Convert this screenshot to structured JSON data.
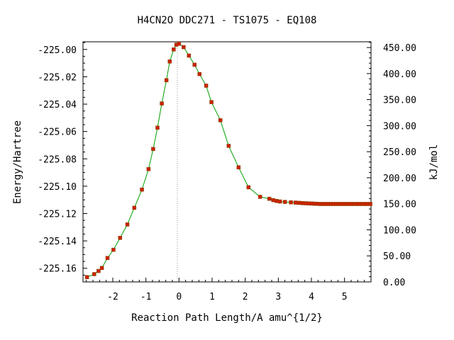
{
  "chart_data": {
    "type": "line",
    "title": "H4CN2O   DDC271 - TS1075 - EQ108",
    "xlabel": "Reaction Path Length/A amu^{1/2}",
    "ylabel": "Energy/Hartree",
    "y2label": "kJ/mol",
    "xlim": [
      -2.9,
      5.8
    ],
    "ylim": [
      -225.17,
      -224.9944
    ],
    "y2lim": [
      0,
      461
    ],
    "x_ticks": [
      -2,
      -1,
      0,
      1,
      2,
      3,
      4,
      5
    ],
    "x_tick_labels": [
      "-2",
      "-1",
      "0",
      "1",
      "2",
      "3",
      "4",
      "5"
    ],
    "y_ticks": [
      -225.0,
      -225.02,
      -225.04,
      -225.06,
      -225.08,
      -225.1,
      -225.12,
      -225.14,
      -225.16
    ],
    "y_tick_labels": [
      "-225.00",
      "-225.02",
      "-225.04",
      "-225.06",
      "-225.08",
      "-225.10",
      "-225.12",
      "-225.14",
      "-225.16"
    ],
    "y2_ticks": [
      0,
      50,
      100,
      150,
      200,
      250,
      300,
      350,
      400,
      450
    ],
    "y2_tick_labels": [
      "0.00",
      "50.00",
      "100.00",
      "150.00",
      "200.00",
      "250.00",
      "300.00",
      "350.00",
      "400.00",
      "450.00"
    ],
    "ts_x": -0.05,
    "grid": false,
    "colors": {
      "line": "#00a000",
      "marker": "#cc2200",
      "marker_edge": "#804000",
      "ts_line": "#999999"
    },
    "series": [
      {
        "x": [
          -2.78,
          -2.56,
          -2.43,
          -2.33,
          -2.16,
          -1.98,
          -1.78,
          -1.56,
          -1.35,
          -1.12,
          -0.92,
          -0.78,
          -0.65,
          -0.52,
          -0.38,
          -0.28,
          -0.16,
          -0.08,
          0.0,
          0.14,
          0.3,
          0.47,
          0.62,
          0.82,
          0.98,
          1.25,
          1.5,
          1.8,
          2.1,
          2.45,
          2.73,
          2.85,
          2.95,
          3.05,
          3.2,
          3.38,
          3.52,
          3.63,
          3.73,
          3.83,
          3.93,
          4.02,
          4.1,
          4.18,
          4.26,
          4.34,
          4.42,
          4.5,
          4.58,
          4.66,
          4.74,
          4.82,
          4.9,
          4.98,
          5.06,
          5.14,
          5.22,
          5.3,
          5.38,
          5.46,
          5.54,
          5.62,
          5.7,
          5.78
        ],
        "y": [
          -225.1665,
          -225.1643,
          -225.162,
          -225.1598,
          -225.1525,
          -225.1465,
          -225.1378,
          -225.128,
          -225.1158,
          -225.1025,
          -225.0875,
          -225.0728,
          -225.0572,
          -225.0395,
          -225.0225,
          -225.0088,
          -225.0,
          -224.9965,
          -224.9958,
          -224.9983,
          -225.0045,
          -225.0112,
          -225.018,
          -225.0265,
          -225.0385,
          -225.0518,
          -225.0705,
          -225.0862,
          -225.1008,
          -225.1078,
          -225.1092,
          -225.1102,
          -225.1108,
          -225.1112,
          -225.1115,
          -225.1118,
          -225.112,
          -225.1122,
          -225.1124,
          -225.1125,
          -225.1126,
          -225.1127,
          -225.1128,
          -225.1129,
          -225.113,
          -225.113,
          -225.113,
          -225.113,
          -225.113,
          -225.113,
          -225.113,
          -225.113,
          -225.113,
          -225.113,
          -225.113,
          -225.113,
          -225.113,
          -225.113,
          -225.113,
          -225.113,
          -225.113,
          -225.113,
          -225.113,
          -225.113
        ]
      }
    ]
  }
}
